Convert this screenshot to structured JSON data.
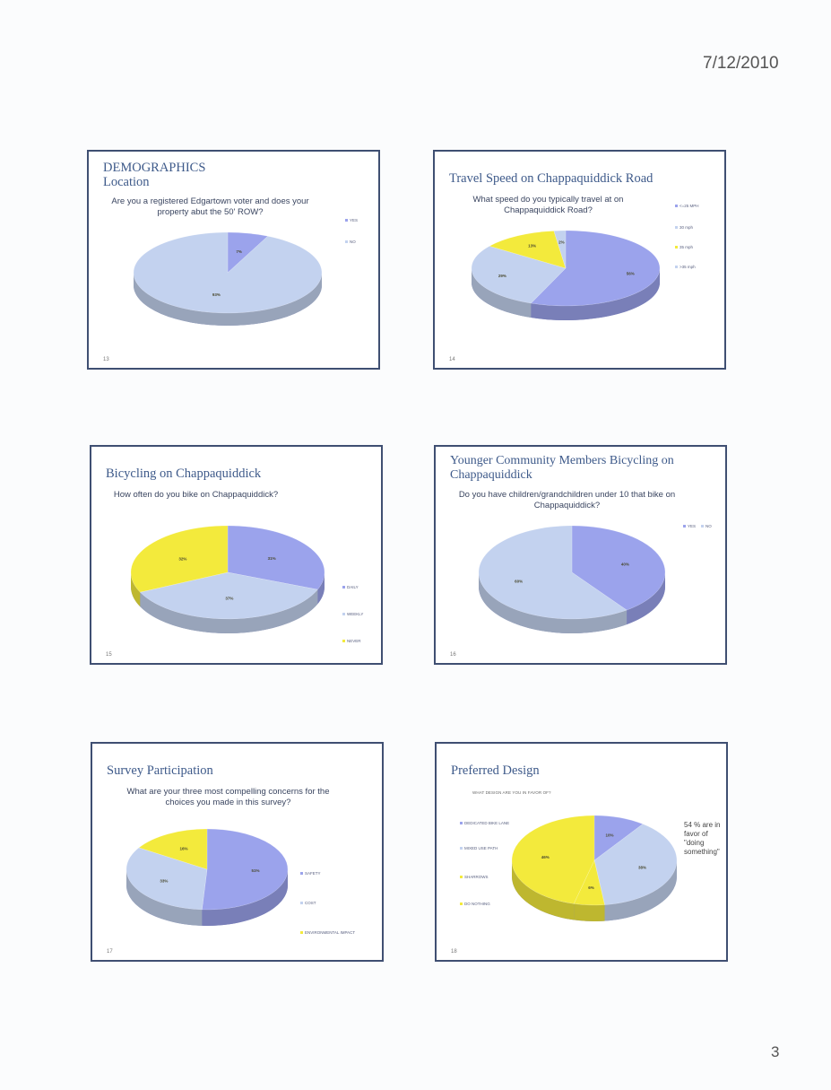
{
  "header": {
    "date": "7/12/2010"
  },
  "footer": {
    "page_number": "3"
  },
  "slides": [
    {
      "title": "DEMOGRAPHICS\nLocation",
      "subtitle": "Are you a registered Edgartown voter and does your property abut the 50' ROW?",
      "number": "13",
      "chart_data": {
        "type": "pie",
        "legend": [
          "YES",
          "NO"
        ],
        "values": [
          7,
          93
        ],
        "labels": [
          "7%",
          "93%"
        ],
        "legend_position": "right"
      }
    },
    {
      "title": "Travel Speed on Chappaquiddick Road",
      "subtitle": "What speed do you typically travel at on Chappaquiddick Road?",
      "number": "14",
      "chart_data": {
        "type": "pie",
        "legend": [
          "<=25 MPH",
          "30 mph",
          "35 mph",
          ">35 mph"
        ],
        "values": [
          56,
          29,
          13,
          2
        ],
        "labels": [
          "56%",
          "29%",
          "13%",
          "2%"
        ],
        "legend_position": "right"
      }
    },
    {
      "title": "Bicycling on Chappaquiddick",
      "subtitle": "How often do you bike on Chappaquiddick?",
      "number": "15",
      "chart_data": {
        "type": "pie",
        "legend": [
          "DAILY",
          "WEEKLY",
          "NEVER"
        ],
        "values": [
          31,
          37,
          32
        ],
        "labels": [
          "31%",
          "37%",
          "32%"
        ],
        "legend_position": "right"
      }
    },
    {
      "title": "Younger Community Members Bicycling on Chappaquiddick",
      "subtitle": "Do you have children/grandchildren under 10 that bike on Chappaquiddick?",
      "number": "16",
      "chart_data": {
        "type": "pie",
        "legend": [
          "YES",
          "NO"
        ],
        "values": [
          40,
          60
        ],
        "labels": [
          "40%",
          "60%"
        ],
        "legend_position": "top-right"
      }
    },
    {
      "title": "Survey Participation",
      "subtitle": "What are your three most compelling concerns for the choices you made in this survey?",
      "number": "17",
      "chart_data": {
        "type": "pie",
        "legend": [
          "SAFETY",
          "COST",
          "ENVIRONMENTAL IMPACT"
        ],
        "values": [
          51,
          33,
          16
        ],
        "labels": [
          "51%",
          "33%",
          "16%"
        ],
        "legend_position": "right"
      }
    },
    {
      "title": "Preferred Design",
      "subtitle": "WHAT DESIGN ARE YOU IN FAVOR OF?",
      "number": "18",
      "note": "54 % are in favor of \"doing something\"",
      "chart_data": {
        "type": "pie",
        "legend": [
          "DEDICATED BIKE LANE",
          "MIXED USE PATH",
          "SHARROWS",
          "DO NOTHING"
        ],
        "values": [
          10,
          38,
          6,
          46
        ],
        "labels": [
          "10%",
          "38%",
          "6%",
          "46%"
        ],
        "legend_position": "left"
      }
    }
  ],
  "colors": {
    "blue": "#9ba3ec",
    "light_blue": "#c3d2ef",
    "yellow": "#f3ea3c",
    "border": "#3f4f72"
  }
}
